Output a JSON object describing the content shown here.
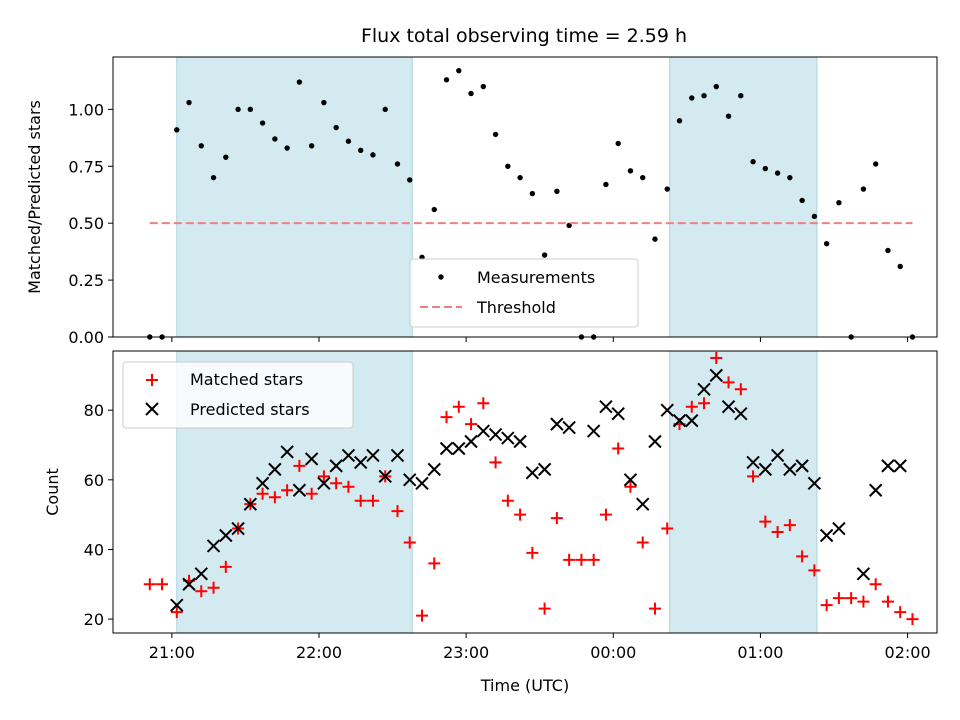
{
  "chart_data": [
    {
      "type": "scatter",
      "title": "Flux total observing time = 2.59 h",
      "ylabel": "Matched/Predicted stars",
      "xlabel": "",
      "ylim": [
        0.0,
        1.23
      ],
      "yticks": [
        0.0,
        0.25,
        0.5,
        0.75,
        1.0
      ],
      "ytick_labels": [
        "0.00",
        "0.25",
        "0.50",
        "0.75",
        "1.00"
      ],
      "xlim": [
        -24,
        312
      ],
      "shaded_intervals": [
        [
          2,
          98
        ],
        [
          203,
          263
        ]
      ],
      "shade_color": "#d4eaf1",
      "legend_location": "lower center",
      "series": [
        {
          "name": "Measurements",
          "color": "#000000",
          "marker": "dot",
          "x": [
            -9,
            -4,
            2,
            7,
            12,
            17,
            22,
            27,
            32,
            37,
            42,
            47,
            52,
            57,
            62,
            67,
            72,
            77,
            82,
            87,
            92,
            97,
            102,
            107,
            112,
            117,
            122,
            127,
            132,
            137,
            142,
            147,
            152,
            157,
            162,
            167,
            172,
            177,
            182,
            187,
            192,
            197,
            202,
            207,
            212,
            217,
            222,
            227,
            232,
            237,
            242,
            247,
            252,
            257,
            262,
            267,
            272,
            277,
            282,
            287,
            292,
            297,
            302
          ],
          "y": [
            0.0,
            0.0,
            0.91,
            1.03,
            0.84,
            0.7,
            0.79,
            1.0,
            1.0,
            0.94,
            0.87,
            0.83,
            1.12,
            0.84,
            1.03,
            0.92,
            0.86,
            0.82,
            0.8,
            1.0,
            0.76,
            0.69,
            0.35,
            0.56,
            1.13,
            1.17,
            1.07,
            1.1,
            0.89,
            0.75,
            0.7,
            0.63,
            0.36,
            0.64,
            0.49,
            0.0,
            0.0,
            0.67,
            0.85,
            0.73,
            0.7,
            0.43,
            0.65,
            0.95,
            1.05,
            1.06,
            1.1,
            0.97,
            1.06,
            0.77,
            0.74,
            0.72,
            0.7,
            0.6,
            0.53,
            0.41,
            0.59,
            0.0,
            0.65,
            0.76,
            0.38,
            0.31,
            0.0
          ]
        },
        {
          "name": "Threshold",
          "color": "#f08080",
          "style": "dashed",
          "x": [
            -9,
            302
          ],
          "y": [
            0.5,
            0.5
          ]
        }
      ]
    },
    {
      "type": "scatter",
      "xlabel": "Time (UTC)",
      "ylabel": "Count",
      "ylim": [
        16,
        97
      ],
      "yticks": [
        20,
        40,
        60,
        80
      ],
      "ytick_labels": [
        "20",
        "40",
        "60",
        "80"
      ],
      "xlim": [
        -24,
        312
      ],
      "xticks": [
        0,
        60,
        120,
        180,
        240,
        300
      ],
      "xtick_labels": [
        "21:00",
        "22:00",
        "23:00",
        "00:00",
        "01:00",
        "02:00"
      ],
      "shaded_intervals": [
        [
          2,
          98
        ],
        [
          203,
          263
        ]
      ],
      "shade_color": "#d4eaf1",
      "legend_location": "upper left",
      "series": [
        {
          "name": "Matched stars",
          "color": "#ff0000",
          "marker": "plus",
          "x": [
            -9,
            -4,
            2,
            7,
            12,
            17,
            22,
            27,
            32,
            37,
            42,
            47,
            52,
            57,
            62,
            67,
            72,
            77,
            82,
            87,
            92,
            97,
            102,
            107,
            112,
            117,
            122,
            127,
            132,
            137,
            142,
            147,
            152,
            157,
            162,
            167,
            172,
            177,
            182,
            187,
            192,
            197,
            202,
            207,
            212,
            217,
            222,
            227,
            232,
            237,
            242,
            247,
            252,
            257,
            262,
            267,
            272,
            277,
            282,
            287,
            292,
            297,
            302
          ],
          "y": [
            30,
            30,
            22,
            31,
            28,
            29,
            35,
            46,
            53,
            56,
            55,
            57,
            64,
            56,
            61,
            59,
            58,
            54,
            54,
            61,
            51,
            42,
            21,
            36,
            78,
            81,
            76,
            82,
            65,
            54,
            50,
            39,
            23,
            49,
            37,
            37,
            37,
            50,
            69,
            58,
            42,
            23,
            46,
            76,
            81,
            82,
            95,
            88,
            86,
            61,
            48,
            45,
            47,
            38,
            34,
            24,
            26,
            26,
            25,
            30,
            25,
            22,
            20
          ]
        },
        {
          "name": "Predicted stars",
          "color": "#000000",
          "marker": "x",
          "x": [
            2,
            7,
            12,
            17,
            22,
            27,
            32,
            37,
            42,
            47,
            52,
            57,
            62,
            67,
            72,
            77,
            82,
            87,
            92,
            97,
            102,
            107,
            112,
            117,
            122,
            127,
            132,
            137,
            142,
            147,
            152,
            157,
            162,
            172,
            177,
            182,
            187,
            192,
            197,
            202,
            207,
            212,
            217,
            222,
            227,
            232,
            237,
            242,
            247,
            252,
            257,
            262,
            267,
            272,
            282,
            287,
            292,
            297
          ],
          "y": [
            24,
            30,
            33,
            41,
            44,
            46,
            53,
            59,
            63,
            68,
            57,
            66,
            59,
            64,
            67,
            65,
            67,
            61,
            67,
            60,
            59,
            63,
            69,
            69,
            71,
            74,
            73,
            72,
            71,
            62,
            63,
            76,
            75,
            74,
            81,
            79,
            60,
            53,
            71,
            80,
            77,
            77,
            86,
            90,
            81,
            79,
            65,
            63,
            67,
            63,
            64,
            59,
            44,
            46,
            33,
            57,
            64,
            64
          ]
        }
      ]
    }
  ]
}
